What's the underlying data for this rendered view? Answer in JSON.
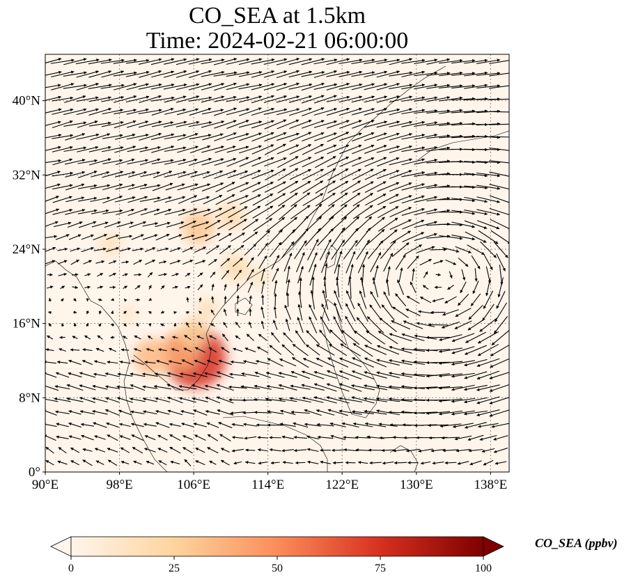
{
  "title": {
    "line1": "CO_SEA at 1.5km",
    "line2": "Time: 2024-02-21 06:00:00"
  },
  "map": {
    "lon_range": [
      90,
      140
    ],
    "lat_range": [
      0,
      45
    ],
    "lon_ticks": [
      {
        "value": 90,
        "label": "90°E"
      },
      {
        "value": 98,
        "label": "98°E"
      },
      {
        "value": 106,
        "label": "106°E"
      },
      {
        "value": 114,
        "label": "114°E"
      },
      {
        "value": 122,
        "label": "122°E"
      },
      {
        "value": 130,
        "label": "130°E"
      },
      {
        "value": 138,
        "label": "138°E"
      }
    ],
    "lat_ticks": [
      {
        "value": 0,
        "label": "0°"
      },
      {
        "value": 8,
        "label": "8°N"
      },
      {
        "value": 16,
        "label": "16°N"
      },
      {
        "value": 24,
        "label": "24°N"
      },
      {
        "value": 32,
        "label": "32°N"
      },
      {
        "value": 40,
        "label": "40°N"
      }
    ],
    "gridlines": true,
    "background_color": "#fff5eb",
    "concentration_hotspots": [
      {
        "lon": 106.2,
        "lat": 12.3,
        "value": 75
      },
      {
        "lon": 104.5,
        "lat": 13.0,
        "value": 40
      },
      {
        "lon": 101.5,
        "lat": 12.4,
        "value": 35
      },
      {
        "lon": 106.0,
        "lat": 15.0,
        "value": 25
      },
      {
        "lon": 107.5,
        "lat": 17.5,
        "value": 15
      },
      {
        "lon": 106.5,
        "lat": 26.3,
        "value": 30
      },
      {
        "lon": 110.0,
        "lat": 27.5,
        "value": 20
      },
      {
        "lon": 110.5,
        "lat": 22.0,
        "value": 20
      },
      {
        "lon": 113.0,
        "lat": 21.0,
        "value": 12
      },
      {
        "lon": 97.0,
        "lat": 24.5,
        "value": 15
      },
      {
        "lon": 99.0,
        "lat": 17.0,
        "value": 10
      }
    ],
    "wind_field": "arrows"
  },
  "colorbar": {
    "min": 0,
    "max": 100,
    "ticks": [
      "0",
      "25",
      "50",
      "75",
      "100"
    ],
    "label": "CO_SEA (ppbv)",
    "colormap": [
      "#fff5eb",
      "#fdd49e",
      "#fc8d59",
      "#d7301f",
      "#7f0000"
    ],
    "extend": "both"
  }
}
